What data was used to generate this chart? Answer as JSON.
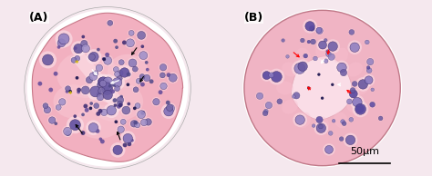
{
  "panel_A_label": "(A)",
  "panel_B_label": "(B)",
  "scale_bar_text": "50μm",
  "label_fontsize": 9,
  "label_color": "black",
  "scale_bar_fontsize": 8,
  "fig_width": 4.74,
  "fig_height": 1.94,
  "dpi": 100,
  "bg_color": "#f5e8ee",
  "tissue_pink": "#f0a8b8",
  "tissue_light_pink": "#f8d0dc",
  "tissue_pale": "#fce8f0",
  "cell_colors": [
    "#7060a8",
    "#6858a0",
    "#8070b8",
    "#5848908",
    "#9080c0",
    "#504888",
    "#6050a0"
  ],
  "dark_cell": "#382870",
  "outer_border": "#c07888"
}
